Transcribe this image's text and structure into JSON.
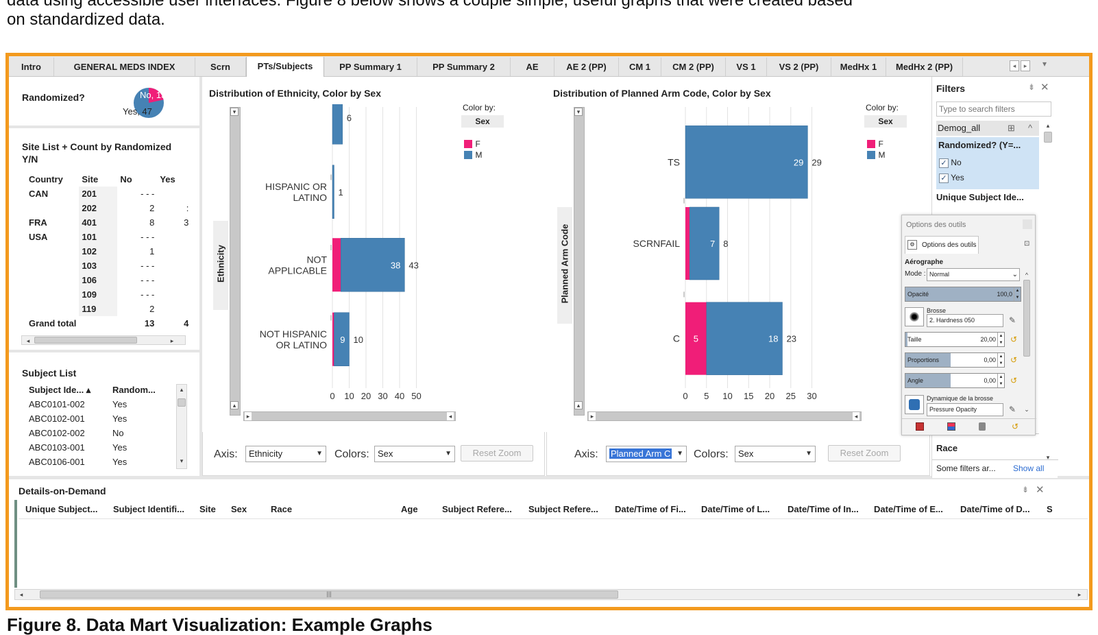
{
  "intro_text": {
    "line1": "data using accessible user interfaces. Figure 8 below shows a couple simple, useful graphs that were created based",
    "line2": "on standardized data."
  },
  "caption": "Figure 8. Data Mart Visualization: Example Graphs",
  "tabs": [
    {
      "label": "Intro"
    },
    {
      "label": "GENERAL MEDS INDEX"
    },
    {
      "label": "Scrn"
    },
    {
      "label": "PTs/Subjects",
      "active": true
    },
    {
      "label": "PP Summary 1"
    },
    {
      "label": "PP Summary 2"
    },
    {
      "label": "AE"
    },
    {
      "label": "AE 2 (PP)"
    },
    {
      "label": "CM 1"
    },
    {
      "label": "CM 2 (PP)"
    },
    {
      "label": "VS 1"
    },
    {
      "label": "VS 2 (PP)"
    },
    {
      "label": "MedHx 1"
    },
    {
      "label": "MedHx 2 (PP)"
    }
  ],
  "tab_nav": {
    "prev": "◂",
    "next": "▸",
    "menu": "▾"
  },
  "randomized": {
    "title": "Randomized?",
    "pie": {
      "no_label": "No, 13",
      "yes_label": "Yes, 47",
      "no": 13,
      "yes": 47,
      "no_color": "#f01e78",
      "yes_color": "#4682b4"
    }
  },
  "site_list": {
    "title": "Site List + Count by Randomized Y/N",
    "headers": [
      "Country",
      "Site",
      "No",
      "Yes"
    ],
    "rows": [
      [
        "CAN",
        "201",
        "- - -",
        ""
      ],
      [
        "",
        "202",
        "2",
        ":"
      ],
      [
        "FRA",
        "401",
        "8",
        "3"
      ],
      [
        "USA",
        "101",
        "- - -",
        ""
      ],
      [
        "",
        "102",
        "1",
        ""
      ],
      [
        "",
        "103",
        "- - -",
        ""
      ],
      [
        "",
        "106",
        "- - -",
        ""
      ],
      [
        "",
        "109",
        "- - -",
        ""
      ],
      [
        "",
        "119",
        "2",
        ""
      ]
    ],
    "grand_total": {
      "label": "Grand total",
      "no": "13",
      "yes": "4"
    }
  },
  "subject_list": {
    "title": "Subject List",
    "headers": [
      "Subject Ide... ▴",
      "Random..."
    ],
    "rows": [
      [
        "ABC0101-002",
        "Yes"
      ],
      [
        "ABC0102-001",
        "Yes"
      ],
      [
        "ABC0102-002",
        "No"
      ],
      [
        "ABC0103-001",
        "Yes"
      ],
      [
        "ABC0106-001",
        "Yes"
      ]
    ]
  },
  "colors": {
    "F": "#f01e78",
    "M": "#4682b4",
    "accent_frame": "#f39a1e"
  },
  "chart_data": [
    {
      "type": "bar",
      "orientation": "horizontal",
      "stacked": true,
      "title": "Distribution of Ethnicity, Color by Sex",
      "ylabel": "Ethnicity",
      "categories": [
        "",
        "HISPANIC OR LATINO",
        "NOT APPLICABLE",
        "NOT HISPANIC OR LATINO"
      ],
      "series": [
        {
          "name": "F",
          "values": [
            0,
            0,
            5,
            1
          ]
        },
        {
          "name": "M",
          "values": [
            6,
            1,
            38,
            9
          ]
        }
      ],
      "totals": [
        6,
        1,
        43,
        10
      ],
      "inner_labels": [
        "",
        "",
        "38",
        "9"
      ],
      "outer_labels": [
        "6",
        "1",
        "43",
        "10"
      ],
      "xticks": [
        0,
        10,
        20,
        30,
        40,
        50
      ],
      "xlim": [
        0,
        60
      ],
      "legend": {
        "title": "Color by:",
        "field": "Sex",
        "position": "right"
      }
    },
    {
      "type": "bar",
      "orientation": "horizontal",
      "stacked": true,
      "title": "Distribution of Planned Arm Code, Color by Sex",
      "ylabel": "Planned Arm Code",
      "categories": [
        "TS",
        "SCRNFAIL",
        "C"
      ],
      "series": [
        {
          "name": "F",
          "values": [
            0,
            1,
            5
          ]
        },
        {
          "name": "M",
          "values": [
            29,
            7,
            18
          ]
        }
      ],
      "totals": [
        29,
        8,
        23
      ],
      "inner_labels": [
        "29",
        "7",
        "18"
      ],
      "f_labels": [
        "",
        "",
        "5"
      ],
      "outer_labels": [
        "29",
        "8",
        "23"
      ],
      "xticks": [
        0,
        5,
        10,
        15,
        20,
        25,
        30
      ],
      "xlim": [
        0,
        33
      ],
      "legend": {
        "title": "Color by:",
        "field": "Sex",
        "position": "right"
      }
    }
  ],
  "chart1_controls": {
    "axis_label": "Axis:",
    "axis_value": "Ethnicity",
    "colors_label": "Colors:",
    "colors_value": "Sex",
    "reset": "Reset Zoom"
  },
  "chart2_controls": {
    "axis_label": "Axis:",
    "axis_value": "Planned Arm C",
    "colors_label": "Colors:",
    "colors_value": "Sex",
    "reset": "Reset Zoom"
  },
  "filters": {
    "title": "Filters",
    "search_placeholder": "Type to search filters",
    "group": "Demog_all",
    "randomized_title": "Randomized? (Y=...",
    "options": [
      {
        "label": "No",
        "checked": true
      },
      {
        "label": "Yes",
        "checked": true
      }
    ],
    "unique_subject": "Unique Subject Ide...",
    "race": "Race",
    "footer_text": "Some filters ar...",
    "show_all": "Show all"
  },
  "gimp": {
    "title": "Options des outils",
    "tab": "Options des outils",
    "tool": "Aérographe",
    "mode_label": "Mode :",
    "mode_value": "Normal",
    "opacity_label": "Opacité",
    "opacity_value": "100,0",
    "opacity_fraction": 1.0,
    "brush_label": "Brosse",
    "brush_value": "2. Hardness 050",
    "size_label": "Taille",
    "size_value": "20,00",
    "ratio_label": "Proportions",
    "ratio_value": "0,00",
    "angle_label": "Angle",
    "angle_value": "0,00",
    "dynamics_label": "Dynamique de la brosse",
    "dynamics_value": "Pressure Opacity"
  },
  "details": {
    "title": "Details-on-Demand",
    "columns": [
      "Unique Subject...",
      "Subject Identifi...",
      "Site",
      "Sex",
      "Race",
      "Age",
      "Subject Refere...",
      "Subject Refere...",
      "Date/Time of Fi...",
      "Date/Time of L...",
      "Date/Time of In...",
      "Date/Time of E...",
      "Date/Time of D...",
      "S"
    ]
  }
}
